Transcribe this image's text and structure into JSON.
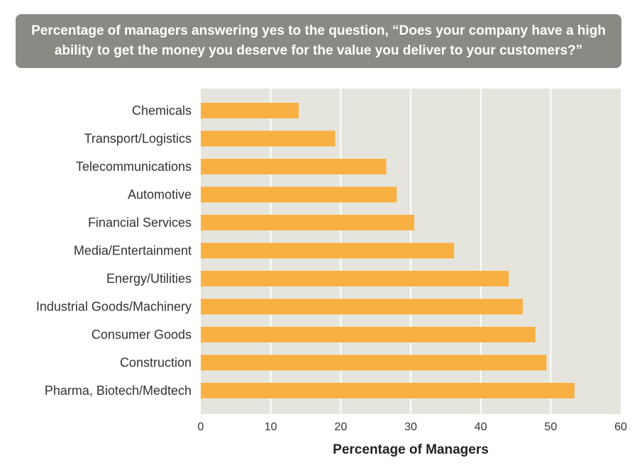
{
  "chart_data": {
    "type": "bar",
    "orientation": "horizontal",
    "title": "Percentage of managers answering yes to the question, “Does your company have a high ability to get the money you deserve for the value you deliver to your customers?”",
    "xlabel": "Percentage of Managers",
    "ylabel": "",
    "xlim": [
      0,
      60
    ],
    "ticks": [
      0,
      10,
      20,
      30,
      40,
      50,
      60
    ],
    "grid": true,
    "categories": [
      "Chemicals",
      "Transport/Logistics",
      "Telecommunications",
      "Automotive",
      "Financial Services",
      "Media/Entertainment",
      "Energy/Utilities",
      "Industrial Goods/Machinery",
      "Consumer Goods",
      "Construction",
      "Pharma, Biotech/Medtech"
    ],
    "values": [
      14,
      19.2,
      26.5,
      28,
      30.5,
      36.2,
      44,
      46,
      47.8,
      49.4,
      53.4
    ],
    "colors": {
      "bar": "#f9b042",
      "plot_bg": "#e6e5dd",
      "grid": "#ffffff",
      "title_bg": "#8a8a85"
    }
  }
}
